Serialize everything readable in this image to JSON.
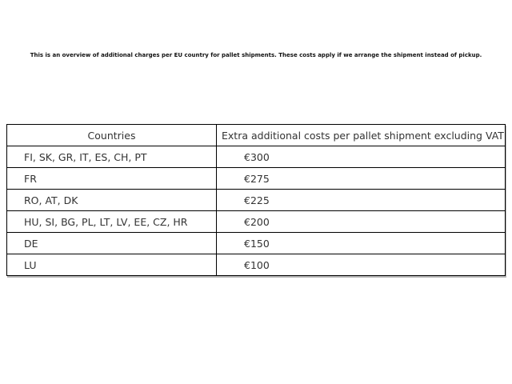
{
  "intro_text": "This is an overview of additional charges per EU country for pallet shipments. These costs apply if we arrange the shipment instead of pickup.",
  "table": {
    "headers": {
      "countries": "Countries",
      "costs": "Extra additional costs per pallet shipment excluding VAT"
    },
    "rows": [
      {
        "countries": "FI, SK, GR, IT, ES, CH, PT",
        "cost": "€300"
      },
      {
        "countries": "FR",
        "cost": "€275"
      },
      {
        "countries": "RO, AT, DK",
        "cost": "€225"
      },
      {
        "countries": "HU, SI, BG, PL, LT, LV, EE, CZ, HR",
        "cost": "€200"
      },
      {
        "countries": "DE",
        "cost": "€150"
      },
      {
        "countries": "LU",
        "cost": "€100"
      }
    ],
    "border_color": "#000000",
    "text_color": "#333333"
  }
}
